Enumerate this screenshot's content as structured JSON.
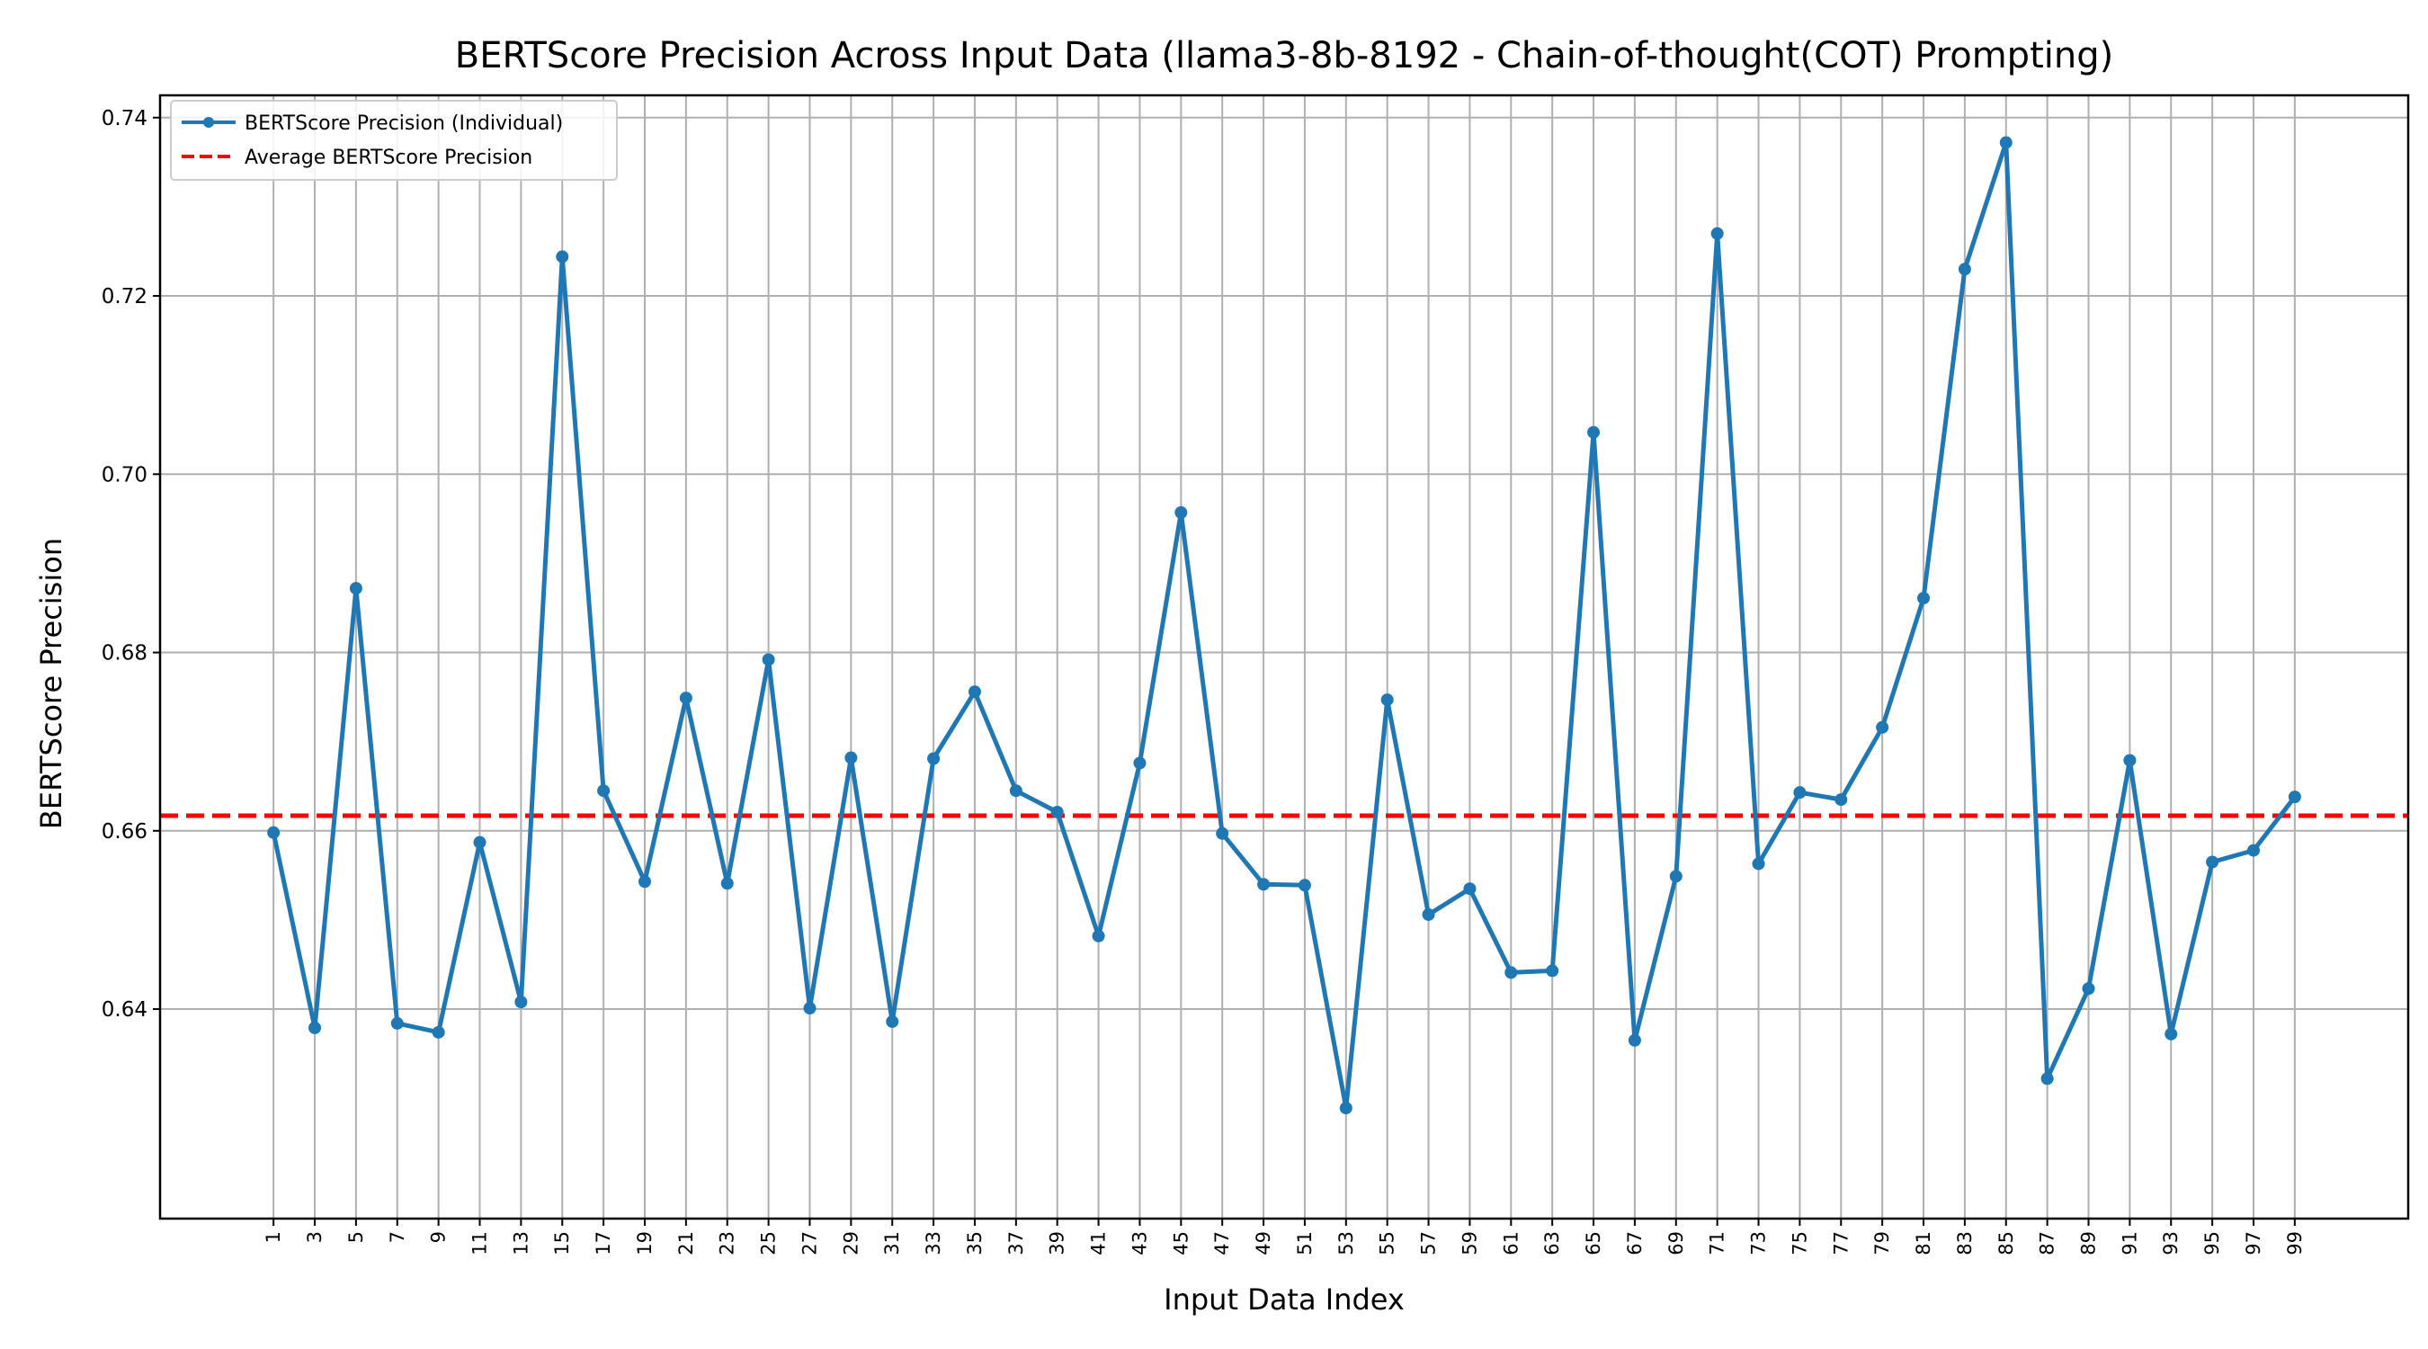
{
  "chart_data": {
    "type": "line",
    "title": "BERTScore Precision Across Input Data (llama3-8b-8192 - Chain-of-thought(COT) Prompting)",
    "xlabel": "Input Data Index",
    "ylabel": "BERTScore Precision",
    "x": [
      1,
      3,
      5,
      7,
      9,
      11,
      13,
      15,
      17,
      19,
      21,
      23,
      25,
      27,
      29,
      31,
      33,
      35,
      37,
      39,
      41,
      43,
      45,
      47,
      49,
      51,
      53,
      55,
      57,
      59,
      61,
      63,
      65,
      67,
      69,
      71,
      73,
      75,
      77,
      79,
      81,
      83,
      85,
      87,
      89,
      91,
      93,
      95,
      97,
      99
    ],
    "xtick_labels": [
      "1",
      "3",
      "5",
      "7",
      "9",
      "11",
      "13",
      "15",
      "17",
      "19",
      "21",
      "23",
      "25",
      "27",
      "29",
      "31",
      "33",
      "35",
      "37",
      "39",
      "41",
      "43",
      "45",
      "47",
      "49",
      "51",
      "53",
      "55",
      "57",
      "59",
      "61",
      "63",
      "65",
      "67",
      "69",
      "71",
      "73",
      "75",
      "77",
      "79",
      "81",
      "83",
      "85",
      "87",
      "89",
      "91",
      "93",
      "95",
      "97",
      "99"
    ],
    "yticks": [
      0.64,
      0.66,
      0.68,
      0.7,
      0.72,
      0.74
    ],
    "ytick_labels": [
      "0.64",
      "0.66",
      "0.68",
      "0.70",
      "0.72",
      "0.74"
    ],
    "xlim": [
      -4.5,
      104.5
    ],
    "ylim": [
      0.6165,
      0.7425
    ],
    "grid": true,
    "legend_position": "top-left",
    "series": [
      {
        "name": "BERTScore Precision (Individual)",
        "color": "#1f77b4",
        "style": "solid-with-markers",
        "values": [
          0.6598,
          0.6379,
          0.6872,
          0.6384,
          0.6374,
          0.6587,
          0.6408,
          0.7244,
          0.6645,
          0.6543,
          0.6749,
          0.6541,
          0.6792,
          0.6401,
          0.6682,
          0.6386,
          0.6681,
          0.6756,
          0.6645,
          0.6621,
          0.6482,
          0.6676,
          0.6957,
          0.6597,
          0.654,
          0.6539,
          0.6289,
          0.6747,
          0.6506,
          0.6535,
          0.6441,
          0.6443,
          0.7047,
          0.6365,
          0.6549,
          0.727,
          0.6563,
          0.6643,
          0.6635,
          0.6716,
          0.6861,
          0.723,
          0.7372,
          0.6322,
          0.6423,
          0.6679,
          0.6372,
          0.6565,
          0.6578,
          0.6638
        ]
      },
      {
        "name": "Average BERTScore Precision",
        "color": "#ff0000",
        "style": "dashed",
        "constant": 0.6617
      }
    ]
  }
}
